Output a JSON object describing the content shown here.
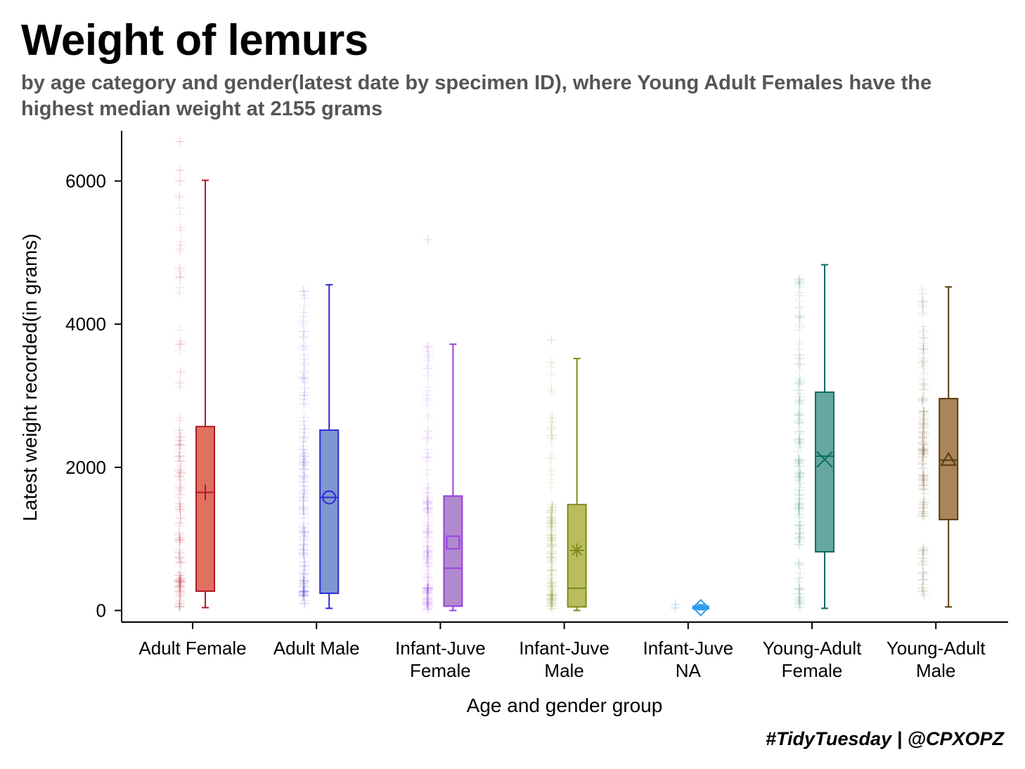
{
  "title": "Weight of lemurs",
  "subtitle": "by age category and gender(latest date by specimen ID), where Young Adult Females have the highest median weight at 2155 grams",
  "caption": "#TidyTuesday | @CPXOPZ",
  "chart_data": {
    "type": "boxplot",
    "title": "Weight of lemurs",
    "subtitle": "by age category and gender(latest date by specimen ID), where Young Adult Females have the highest median weight at 2155 grams",
    "xlabel": "Age and gender group",
    "ylabel": "Latest weight recorded(in grams)",
    "ylim": [
      -150,
      6600
    ],
    "yticks": [
      0,
      2000,
      4000,
      6000
    ],
    "grid": false,
    "legend": "none",
    "groups": [
      {
        "label": "Adult Female",
        "label_lines": [
          "Adult Female"
        ],
        "color": "#B2182B",
        "fill": "#E07060",
        "marker": "plus",
        "min": 40,
        "q1": 270,
        "median": 1650,
        "q3": 2570,
        "max": 6010,
        "mean": 1650,
        "outliers": [
          6550,
          6150,
          6000
        ]
      },
      {
        "label": "Adult Male",
        "label_lines": [
          "Adult Male"
        ],
        "color": "#2C2CD2",
        "fill": "#7F97D0",
        "marker": "circle",
        "min": 30,
        "q1": 240,
        "median": 1580,
        "q3": 2520,
        "max": 4550,
        "mean": 1580,
        "outliers": []
      },
      {
        "label": "Infant-Juve Female",
        "label_lines": [
          "Infant-Juve",
          "Female"
        ],
        "color": "#9B40E0",
        "fill": "#B089CF",
        "marker": "square",
        "min": 0,
        "q1": 60,
        "median": 590,
        "q3": 1600,
        "max": 3720,
        "mean": 950,
        "outliers": [
          5180
        ]
      },
      {
        "label": "Infant-Juve Male",
        "label_lines": [
          "Infant-Juve",
          "Male"
        ],
        "color": "#7F8C1A",
        "fill": "#BABD5E",
        "marker": "asterisk",
        "min": 0,
        "q1": 50,
        "median": 310,
        "q3": 1480,
        "max": 3520,
        "mean": 840,
        "outliers": [
          3780
        ]
      },
      {
        "label": "Infant-Juve NA",
        "label_lines": [
          "Infant-Juve",
          "NA"
        ],
        "color": "#2A9AEA",
        "fill": "#9CCFF5",
        "marker": "diamond",
        "min": 10,
        "q1": 20,
        "median": 40,
        "q3": 60,
        "max": 80,
        "mean": 40,
        "outliers": []
      },
      {
        "label": "Young-Adult Female",
        "label_lines": [
          "Young-Adult",
          "Female"
        ],
        "color": "#0F6B63",
        "fill": "#66A89F",
        "marker": "x",
        "min": 30,
        "q1": 820,
        "median": 2155,
        "q3": 3050,
        "max": 4830,
        "mean": 2110,
        "outliers": []
      },
      {
        "label": "Young-Adult Male",
        "label_lines": [
          "Young-Adult",
          "Male"
        ],
        "color": "#5A3A10",
        "fill": "#A88659",
        "marker": "triangle",
        "min": 50,
        "q1": 1270,
        "median": 2100,
        "q3": 2960,
        "max": 4520,
        "mean": 2100,
        "outliers": []
      }
    ]
  }
}
